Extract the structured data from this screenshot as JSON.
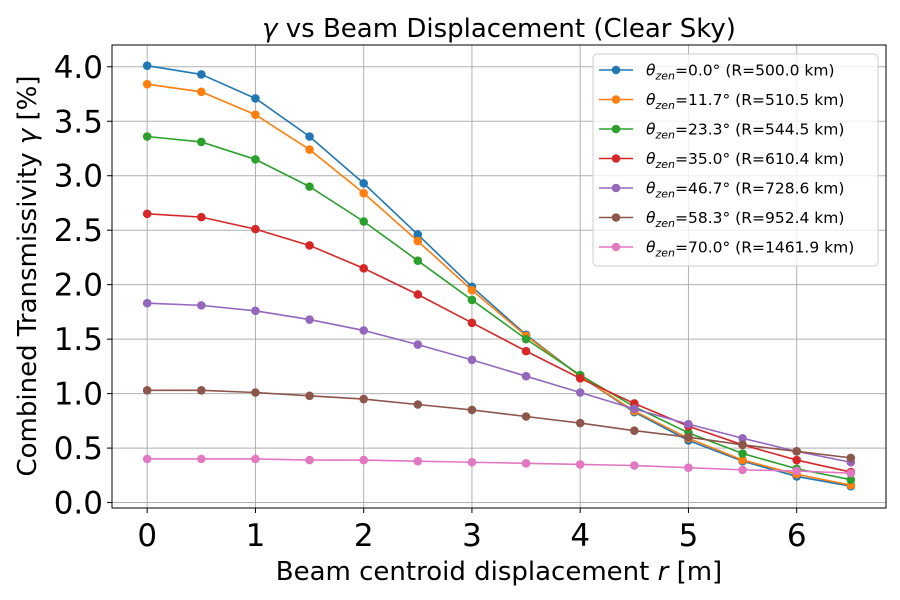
{
  "chart_data": {
    "type": "line",
    "title_symbol": "γ",
    "title_rest": " vs Beam Displacement (Clear Sky)",
    "xlabel_text": "Beam centroid displacement ",
    "xlabel_var": "r",
    "xlabel_unit": " [m]",
    "ylabel_text": "Combined Transmissivity ",
    "ylabel_var": "γ",
    "ylabel_unit": " [%]",
    "xlim": [
      -0.325,
      6.825
    ],
    "ylim": [
      -0.05,
      4.2
    ],
    "grid": true,
    "legend_position": "top-right",
    "x_ticks": [
      0,
      1,
      2,
      3,
      4,
      5,
      6
    ],
    "x_tick_labels": [
      "0",
      "1",
      "2",
      "3",
      "4",
      "5",
      "6"
    ],
    "y_ticks": [
      0.0,
      0.5,
      1.0,
      1.5,
      2.0,
      2.5,
      3.0,
      3.5,
      4.0
    ],
    "y_tick_labels": [
      "0.0",
      "0.5",
      "1.0",
      "1.5",
      "2.0",
      "2.5",
      "3.0",
      "3.5",
      "4.0"
    ],
    "x": [
      0,
      0.5,
      1,
      1.5,
      2,
      2.5,
      3,
      3.5,
      4,
      4.5,
      5,
      5.5,
      6,
      6.5
    ],
    "series": [
      {
        "name_symbol": "θ",
        "name_sub": "zen",
        "name_rest": "=0.0° (R=500.0 km)",
        "color": "#1f77b4",
        "values": [
          4.01,
          3.93,
          3.71,
          3.36,
          2.93,
          2.46,
          1.98,
          1.54,
          1.16,
          0.83,
          0.57,
          0.38,
          0.24,
          0.15
        ]
      },
      {
        "name_symbol": "θ",
        "name_sub": "zen",
        "name_rest": "=11.7° (R=510.5 km)",
        "color": "#ff7f0e",
        "values": [
          3.84,
          3.77,
          3.56,
          3.24,
          2.84,
          2.4,
          1.95,
          1.53,
          1.16,
          0.84,
          0.59,
          0.39,
          0.26,
          0.16
        ]
      },
      {
        "name_symbol": "θ",
        "name_sub": "zen",
        "name_rest": "=23.3° (R=544.5 km)",
        "color": "#2ca02c",
        "values": [
          3.36,
          3.31,
          3.15,
          2.9,
          2.58,
          2.22,
          1.86,
          1.5,
          1.17,
          0.88,
          0.64,
          0.45,
          0.31,
          0.21
        ]
      },
      {
        "name_symbol": "θ",
        "name_sub": "zen",
        "name_rest": "=35.0° (R=610.4 km)",
        "color": "#d62728",
        "values": [
          2.65,
          2.62,
          2.51,
          2.36,
          2.15,
          1.91,
          1.65,
          1.39,
          1.14,
          0.91,
          0.7,
          0.53,
          0.39,
          0.28
        ]
      },
      {
        "name_symbol": "θ",
        "name_sub": "zen",
        "name_rest": "=46.7° (R=728.6 km)",
        "color": "#9467bd",
        "values": [
          1.83,
          1.81,
          1.76,
          1.68,
          1.58,
          1.45,
          1.31,
          1.16,
          1.01,
          0.86,
          0.72,
          0.59,
          0.47,
          0.37
        ]
      },
      {
        "name_symbol": "θ",
        "name_sub": "zen",
        "name_rest": "=58.3° (R=952.4 km)",
        "color": "#8c564b",
        "values": [
          1.03,
          1.03,
          1.01,
          0.98,
          0.95,
          0.9,
          0.85,
          0.79,
          0.73,
          0.66,
          0.6,
          0.53,
          0.47,
          0.41
        ]
      },
      {
        "name_symbol": "θ",
        "name_sub": "zen",
        "name_rest": "=70.0° (R=1461.9 km)",
        "color": "#e377c2",
        "values": [
          0.4,
          0.4,
          0.4,
          0.39,
          0.39,
          0.38,
          0.37,
          0.36,
          0.35,
          0.34,
          0.32,
          0.3,
          0.29,
          0.27
        ]
      }
    ]
  }
}
